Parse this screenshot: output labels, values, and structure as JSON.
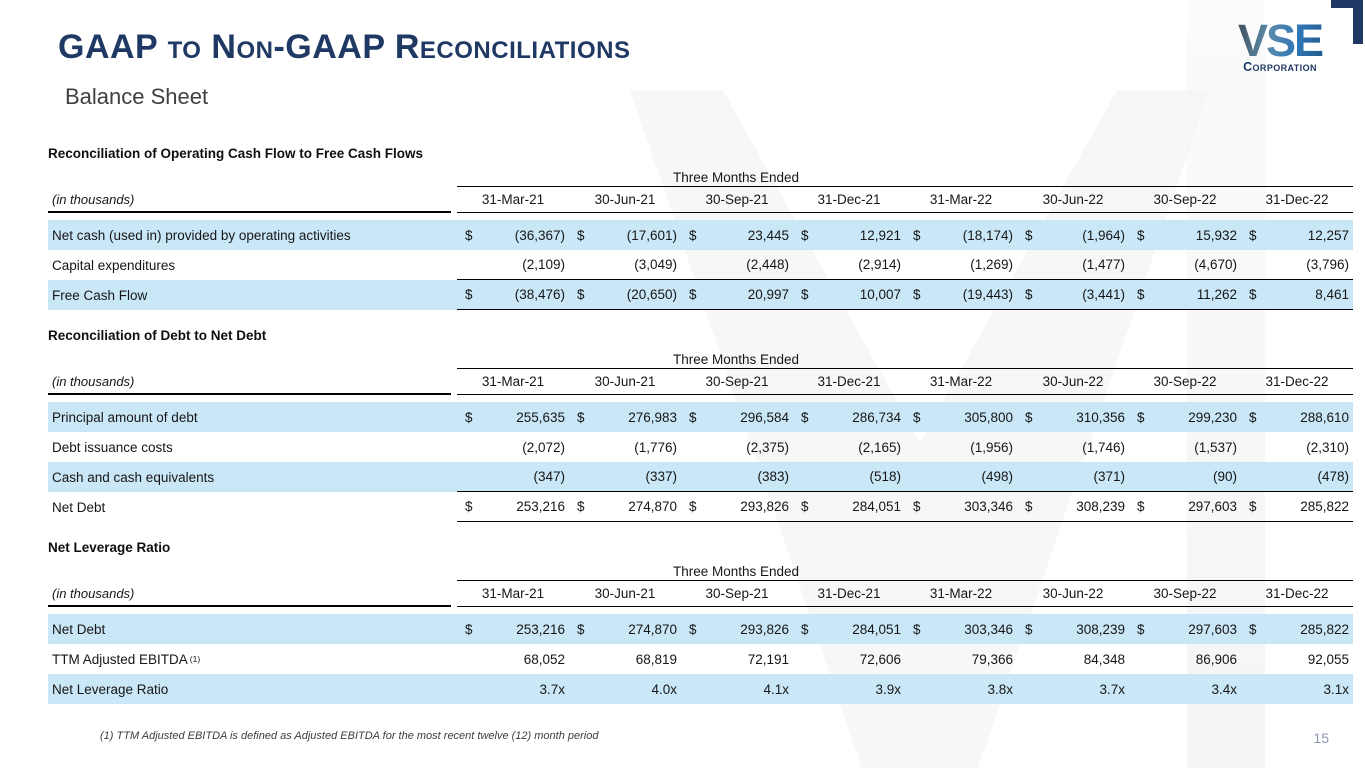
{
  "slide": {
    "title": "GAAP to Non-GAAP Reconciliations",
    "subtitle": "Balance Sheet",
    "page_number": "15",
    "footnote": "(1)  TTM Adjusted EBITDA is defined as Adjusted EBITDA for the most recent twelve (12) month period"
  },
  "logo": {
    "name": "VSE",
    "subtitle": "Corporation"
  },
  "currency": "$",
  "colors": {
    "accent_navy": "#1f3864",
    "row_highlight": "#cae7f8",
    "logo_blue": "#2e75b6",
    "page_number": "#8d99ae"
  },
  "tables": [
    {
      "section_title": "Reconciliation of Operating Cash Flow to Free Cash Flows",
      "period_header": "Three Months Ended",
      "unit_label": "(in thousands)",
      "columns": [
        "31-Mar-21",
        "30-Jun-21",
        "30-Sep-21",
        "31-Dec-21",
        "31-Mar-22",
        "30-Jun-22",
        "30-Sep-22",
        "31-Dec-22"
      ],
      "rows": [
        {
          "label": "Net cash (used in) provided by operating activities",
          "dollar": true,
          "highlight": true,
          "values": [
            "(36,367)",
            "(17,601)",
            "23,445",
            "12,921",
            "(18,174)",
            "(1,964)",
            "15,932",
            "12,257"
          ]
        },
        {
          "label": "Capital expenditures",
          "dollar": false,
          "highlight": false,
          "line_below": true,
          "values": [
            "(2,109)",
            "(3,049)",
            "(2,448)",
            "(2,914)",
            "(1,269)",
            "(1,477)",
            "(4,670)",
            "(3,796)"
          ]
        },
        {
          "label": "Free Cash Flow",
          "dollar": true,
          "highlight": true,
          "line_below": true,
          "values": [
            "(38,476)",
            "(20,650)",
            "20,997",
            "10,007",
            "(19,443)",
            "(3,441)",
            "11,262",
            "8,461"
          ]
        }
      ]
    },
    {
      "section_title": "Reconciliation of Debt to Net Debt",
      "period_header": "Three Months Ended",
      "unit_label": "(in thousands)",
      "columns": [
        "31-Mar-21",
        "30-Jun-21",
        "30-Sep-21",
        "31-Dec-21",
        "31-Mar-22",
        "30-Jun-22",
        "30-Sep-22",
        "31-Dec-22"
      ],
      "rows": [
        {
          "label": "Principal amount of debt",
          "dollar": true,
          "highlight": true,
          "values": [
            "255,635",
            "276,983",
            "296,584",
            "286,734",
            "305,800",
            "310,356",
            "299,230",
            "288,610"
          ]
        },
        {
          "label": "Debt issuance costs",
          "dollar": false,
          "highlight": false,
          "values": [
            "(2,072)",
            "(1,776)",
            "(2,375)",
            "(2,165)",
            "(1,956)",
            "(1,746)",
            "(1,537)",
            "(2,310)"
          ]
        },
        {
          "label": "Cash and cash equivalents",
          "dollar": false,
          "highlight": true,
          "line_below": true,
          "values": [
            "(347)",
            "(337)",
            "(383)",
            "(518)",
            "(498)",
            "(371)",
            "(90)",
            "(478)"
          ]
        },
        {
          "label": "Net Debt",
          "dollar": true,
          "highlight": false,
          "line_below": true,
          "values": [
            "253,216",
            "274,870",
            "293,826",
            "284,051",
            "303,346",
            "308,239",
            "297,603",
            "285,822"
          ]
        }
      ]
    },
    {
      "section_title": "Net Leverage Ratio",
      "period_header": "Three Months Ended",
      "unit_label": "(in thousands)",
      "columns": [
        "31-Mar-21",
        "30-Jun-21",
        "30-Sep-21",
        "31-Dec-21",
        "31-Mar-22",
        "30-Jun-22",
        "30-Sep-22",
        "31-Dec-22"
      ],
      "rows": [
        {
          "label": "Net Debt",
          "dollar": true,
          "highlight": true,
          "values": [
            "253,216",
            "274,870",
            "293,826",
            "284,051",
            "303,346",
            "308,239",
            "297,603",
            "285,822"
          ]
        },
        {
          "label": "TTM Adjusted EBITDA",
          "sup": "(1)",
          "dollar": false,
          "highlight": false,
          "values": [
            "68,052",
            "68,819",
            "72,191",
            "72,606",
            "79,366",
            "84,348",
            "86,906",
            "92,055"
          ]
        },
        {
          "label": "Net Leverage Ratio",
          "dollar": false,
          "highlight": true,
          "values": [
            "3.7x",
            "4.0x",
            "4.1x",
            "3.9x",
            "3.8x",
            "3.7x",
            "3.4x",
            "3.1x"
          ]
        }
      ]
    }
  ]
}
